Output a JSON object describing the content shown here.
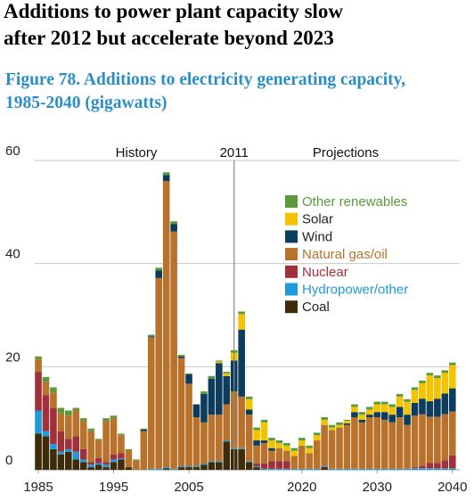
{
  "headline": [
    "Additions to power plant capacity slow",
    "after 2012 but accelerate beyond 2023"
  ],
  "chart_data": {
    "type": "stacked_bar",
    "title": [
      "Figure 78. Additions to electricity generating capacity,",
      "1985-2040 (gigawatts)"
    ],
    "history_label": "History",
    "projections_label": "Projections",
    "divider": 2011,
    "x": [
      1985,
      1986,
      1987,
      1988,
      1989,
      1990,
      1991,
      1992,
      1993,
      1994,
      1995,
      1996,
      1997,
      1998,
      1999,
      2000,
      2001,
      2002,
      2003,
      2004,
      2005,
      2006,
      2007,
      2008,
      2009,
      2010,
      2011,
      2012,
      2013,
      2014,
      2015,
      2016,
      2017,
      2018,
      2019,
      2020,
      2021,
      2022,
      2023,
      2024,
      2025,
      2026,
      2027,
      2028,
      2029,
      2030,
      2031,
      2032,
      2033,
      2034,
      2035,
      2036,
      2037,
      2038,
      2039,
      2040
    ],
    "xlim": [
      1984.5,
      2040.5
    ],
    "xticks": [
      1985,
      1995,
      2005,
      2020,
      2030,
      2040
    ],
    "ylim": [
      0,
      60
    ],
    "yticks": [
      0,
      20,
      40,
      60
    ],
    "grid": true,
    "legend": "upper right",
    "series": [
      {
        "name": "Coal",
        "color": "#3d2b0a",
        "values": [
          7,
          6.5,
          4,
          3,
          3.5,
          2,
          1.5,
          0.5,
          1,
          0.5,
          1.5,
          2,
          0.5,
          0,
          0,
          0,
          0,
          0.3,
          0,
          0.5,
          0.5,
          0.5,
          1,
          1.5,
          1.5,
          5.5,
          4,
          4,
          1.5,
          0.5,
          0,
          0,
          0,
          0,
          0,
          0,
          0,
          0,
          0.5,
          0,
          0,
          0,
          0,
          0,
          0,
          0,
          0,
          0,
          0,
          0,
          0,
          0,
          0,
          0,
          0,
          0
        ]
      },
      {
        "name": "Hydropower/other",
        "color": "#1e9ad6",
        "values": [
          4.5,
          1,
          1,
          0.5,
          0.5,
          1.5,
          0.5,
          0.5,
          0.3,
          0.5,
          0.5,
          0.2,
          0,
          0,
          0,
          0.2,
          0.2,
          0.2,
          0.2,
          0.2,
          0.2,
          0.2,
          0.2,
          0.2,
          0.2,
          0.2,
          0.2,
          0.2,
          0.2,
          0.2,
          0.2,
          0.2,
          0.2,
          0.2,
          0.2,
          0.2,
          0.2,
          0.2,
          0.2,
          0.2,
          0.2,
          0.2,
          0.2,
          0.2,
          0.2,
          0.2,
          0.2,
          0.2,
          0.2,
          0.2,
          0.3,
          0.3,
          0.3,
          0.3,
          0.3,
          0.3
        ]
      },
      {
        "name": "Nuclear",
        "color": "#a0303c",
        "values": [
          7.5,
          7,
          7,
          4,
          2,
          3,
          2,
          0.5,
          1,
          0.5,
          1,
          1,
          0,
          0,
          0,
          0,
          0,
          0,
          0,
          0,
          0,
          0,
          0,
          0,
          0,
          0,
          0,
          0,
          0,
          0.5,
          1,
          1.5,
          1.5,
          1.5,
          0,
          0,
          0,
          0,
          0,
          0,
          0,
          0,
          0,
          0,
          0,
          0,
          0,
          0,
          0,
          0,
          0.2,
          0.5,
          1,
          1,
          1.5,
          2.5
        ]
      },
      {
        "name": "Natural gas/oil",
        "color": "#b8722c",
        "values": [
          2.5,
          2.5,
          3,
          3.5,
          4.5,
          5,
          5.5,
          6,
          3.5,
          8,
          7,
          3.5,
          3.3,
          1.8,
          7.5,
          25.5,
          37,
          55.5,
          46,
          21,
          16,
          9.5,
          8,
          9,
          9,
          7,
          11,
          10,
          9,
          3.5,
          4,
          2,
          2.5,
          2,
          2.5,
          4.5,
          3,
          5.5,
          8,
          7.5,
          8,
          8.5,
          10,
          9,
          10,
          10,
          9.5,
          9,
          10,
          8.5,
          10,
          10,
          9,
          9,
          9,
          8.5
        ]
      },
      {
        "name": "Wind",
        "color": "#0d3d5c",
        "values": [
          0,
          0,
          0,
          0,
          0,
          0,
          0,
          0,
          0,
          0,
          0,
          0,
          0,
          0,
          0.3,
          0.2,
          1.5,
          1.2,
          1.5,
          0.3,
          1.8,
          2.5,
          5.5,
          7,
          10,
          5.5,
          6,
          13,
          1,
          1,
          0.5,
          0.5,
          0,
          0,
          0,
          0,
          0,
          0,
          0,
          0,
          0,
          0.3,
          1,
          0.5,
          0.5,
          1,
          1.5,
          1.5,
          2,
          2,
          2.5,
          3,
          3,
          3.5,
          4,
          4.5
        ]
      },
      {
        "name": "Solar",
        "color": "#f5c200",
        "values": [
          0,
          0,
          0,
          0,
          0,
          0,
          0,
          0,
          0,
          0,
          0,
          0,
          0,
          0,
          0,
          0,
          0,
          0,
          0,
          0,
          0,
          0,
          0,
          0,
          0.3,
          0.5,
          1.5,
          3,
          2,
          2,
          3.5,
          1.5,
          1,
          1,
          1,
          1,
          1,
          1,
          1,
          0.5,
          0.5,
          0.5,
          1,
          1,
          1,
          1.5,
          1.5,
          1.5,
          2,
          2.5,
          2.5,
          3,
          5,
          4,
          4,
          4.5
        ]
      },
      {
        "name": "Other renewables",
        "color": "#5a9a3a",
        "values": [
          0.5,
          1,
          1,
          1,
          1,
          0.5,
          0.5,
          0.5,
          0.2,
          0.5,
          0.5,
          0.3,
          0.2,
          0.2,
          0.2,
          0.3,
          0.5,
          0.5,
          0.5,
          0.3,
          0.2,
          0,
          0.5,
          0.5,
          0.2,
          0.3,
          0.5,
          0.5,
          0.5,
          0.5,
          0.5,
          0.5,
          0.5,
          0.5,
          0.5,
          0.5,
          0.5,
          0.5,
          0.5,
          0.5,
          0.5,
          0.2,
          0.5,
          0.5,
          0.5,
          0.5,
          0.5,
          0.5,
          0.5,
          0.5,
          0.5,
          0.5,
          0.5,
          0.5,
          0.5,
          0.5
        ]
      }
    ]
  }
}
